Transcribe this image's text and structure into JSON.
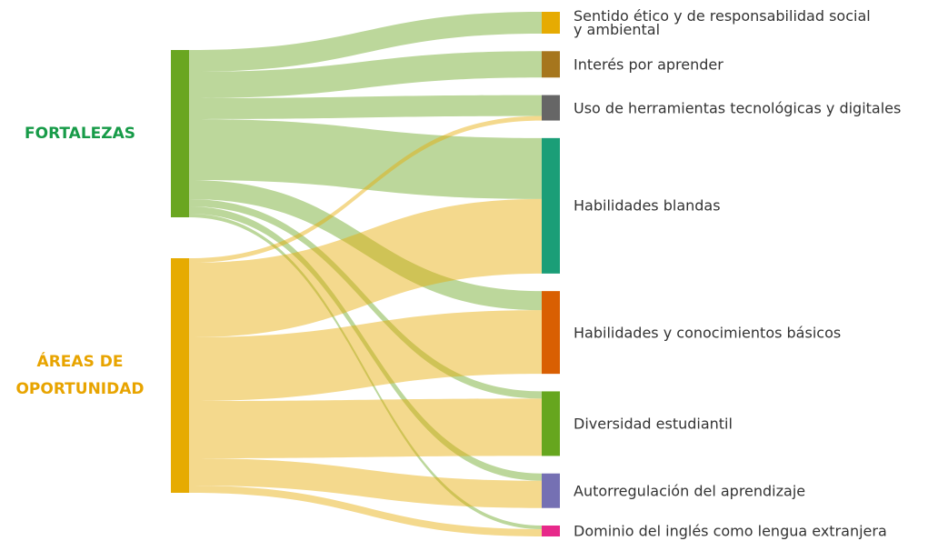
{
  "chart_data": {
    "type": "sankey",
    "nodes": [
      {
        "name": "FORTALEZAS",
        "color": "#6aa621",
        "label_color": "#179b48",
        "side": "left"
      },
      {
        "name": "ÁREAS DE\nOPORTUNIDAD",
        "color": "#e6ab02",
        "label_color": "#e8a400",
        "side": "left"
      },
      {
        "name": "Sentido ético y de responsabilidad social\ny ambiental",
        "color": "#e6ab02",
        "side": "right"
      },
      {
        "name": "Interés por aprender",
        "color": "#a6761d",
        "side": "right"
      },
      {
        "name": "Uso de herramientas tecnológicas y digitales",
        "color": "#666666",
        "side": "right"
      },
      {
        "name": "Habilidades blandas",
        "color": "#1b9e77",
        "side": "right"
      },
      {
        "name": "Habilidades y conocimientos básicos",
        "color": "#d95f02",
        "side": "right"
      },
      {
        "name": "Diversidad estudiantil",
        "color": "#66a61e",
        "side": "right"
      },
      {
        "name": "Autorregulación del aprendizaje",
        "color": "#7570b3",
        "side": "right"
      },
      {
        "name": "Dominio del inglés como lengua extranjera",
        "color": "#e7298a",
        "side": "right"
      }
    ],
    "links": [
      {
        "source": 0,
        "target": 2,
        "value": 24
      },
      {
        "source": 0,
        "target": 3,
        "value": 29
      },
      {
        "source": 0,
        "target": 4,
        "value": 23
      },
      {
        "source": 0,
        "target": 5,
        "value": 67
      },
      {
        "source": 0,
        "target": 6,
        "value": 21
      },
      {
        "source": 0,
        "target": 7,
        "value": 8
      },
      {
        "source": 0,
        "target": 8,
        "value": 8
      },
      {
        "source": 0,
        "target": 9,
        "value": 4
      },
      {
        "source": 1,
        "target": 4,
        "value": 5
      },
      {
        "source": 1,
        "target": 5,
        "value": 82
      },
      {
        "source": 1,
        "target": 6,
        "value": 70
      },
      {
        "source": 1,
        "target": 7,
        "value": 63
      },
      {
        "source": 1,
        "target": 8,
        "value": 30
      },
      {
        "source": 1,
        "target": 9,
        "value": 8
      }
    ]
  }
}
